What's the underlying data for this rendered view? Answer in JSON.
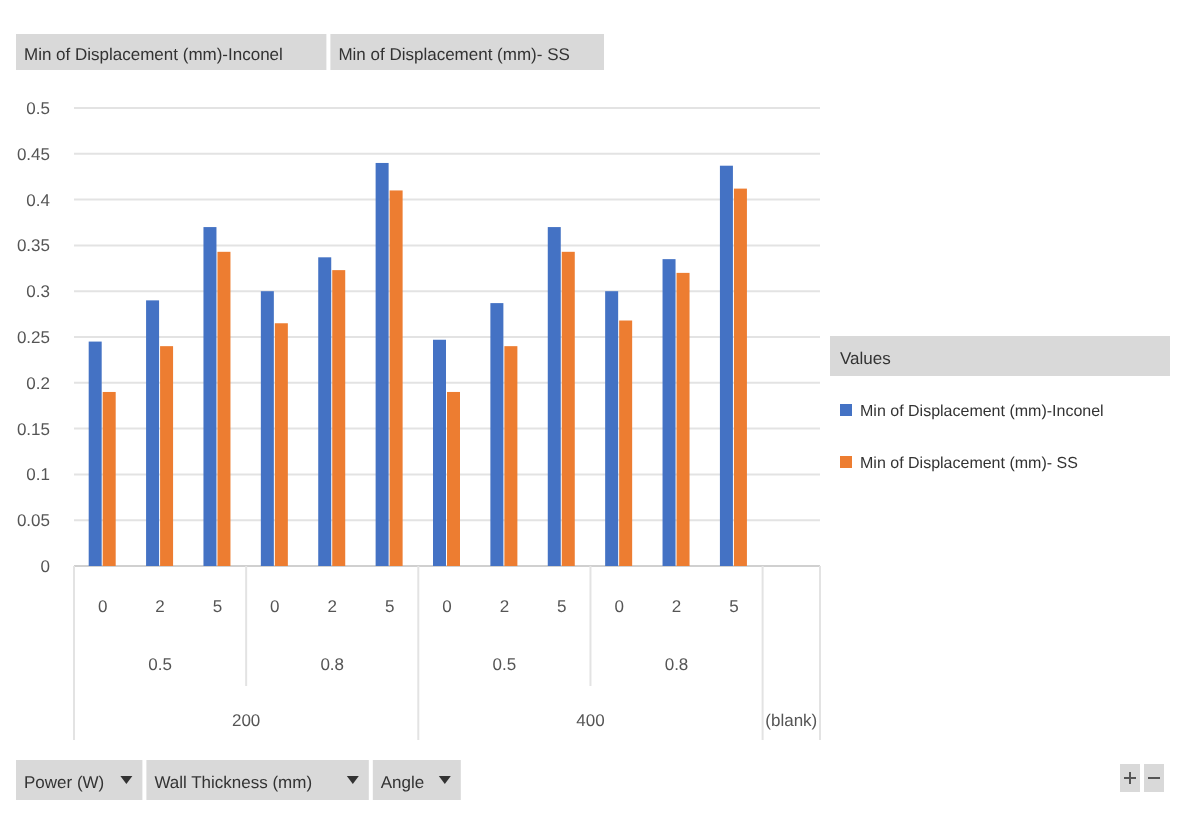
{
  "chart_data": {
    "type": "bar",
    "categories": [
      "0",
      "2",
      "5",
      "0",
      "2",
      "5",
      "0",
      "2",
      "5",
      "0",
      "2",
      "5",
      null
    ],
    "series": [
      {
        "name": "Min of Displacement (mm)-Inconel",
        "color": "#4472c4",
        "values": [
          0.245,
          0.29,
          0.37,
          0.3,
          0.337,
          0.44,
          0.247,
          0.287,
          0.37,
          0.3,
          0.335,
          0.437,
          null
        ]
      },
      {
        "name": "Min of Displacement (mm)- SS",
        "color": "#ed7d31",
        "values": [
          0.19,
          0.24,
          0.343,
          0.265,
          0.323,
          0.41,
          0.19,
          0.24,
          0.343,
          0.268,
          0.32,
          0.412,
          null
        ]
      }
    ],
    "ylim": [
      0,
      0.5
    ],
    "yticks": [
      0,
      0.05,
      0.1,
      0.15,
      0.2,
      0.25,
      0.3,
      0.35,
      0.4,
      0.45,
      0.5
    ],
    "grid": "y",
    "legend": "right",
    "legend_title": "Values",
    "annotations": [
      "0.5",
      "0.8",
      "0.5",
      "0.8",
      "200",
      "400",
      "(blank)",
      "Power (W)",
      "Wall Thickness (mm)",
      "Angle"
    ]
  }
}
